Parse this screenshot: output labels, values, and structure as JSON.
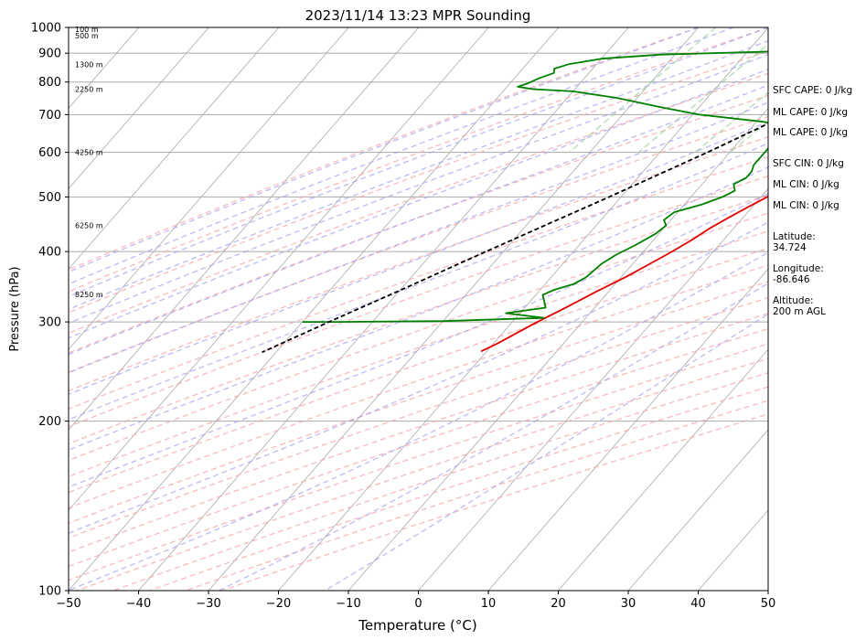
{
  "chart_data": {
    "type": "line",
    "title": "2023/11/14 13:23 MPR Sounding",
    "xlabel": "Temperature (°C)",
    "ylabel": "Pressure (hPa)",
    "xlim": [
      -50,
      50
    ],
    "ylim": [
      1000,
      100
    ],
    "y_scale": "log",
    "x_ticks": [
      -50,
      -40,
      -30,
      -20,
      -10,
      0,
      10,
      20,
      30,
      40,
      50
    ],
    "x_tick_labels": [
      "−50",
      "−40",
      "−30",
      "−20",
      "−10",
      "0",
      "10",
      "20",
      "30",
      "40",
      "50"
    ],
    "y_ticks": [
      1000,
      900,
      800,
      700,
      600,
      500,
      400,
      300,
      200,
      100
    ],
    "skew": true,
    "grid": true,
    "reference_lines": {
      "isotherm_color": "#aaaaaa",
      "dry_adiabat_color": "#f4a6a6",
      "moist_adiabat_color": "#a9a3ee",
      "mixing_ratio_color": "#9fd09f"
    },
    "series": [
      {
        "color": "#e00000",
        "points": [
          [
            1000,
            11.0
          ],
          [
            990,
            12.5
          ],
          [
            975,
            13.3
          ],
          [
            950,
            13.4
          ],
          [
            930,
            13.7
          ],
          [
            910,
            14.3
          ],
          [
            890,
            14.6
          ],
          [
            870,
            15.2
          ],
          [
            850,
            15.8
          ],
          [
            830,
            15.6
          ],
          [
            810,
            15.5
          ],
          [
            790,
            15.3
          ],
          [
            770,
            14.5
          ],
          [
            750,
            13.2
          ],
          [
            720,
            11.5
          ],
          [
            690,
            9.8
          ],
          [
            660,
            8.2
          ],
          [
            630,
            6.5
          ],
          [
            600,
            5.0
          ],
          [
            570,
            3.8
          ],
          [
            540,
            2.6
          ],
          [
            520,
            1.8
          ],
          [
            500,
            0.9
          ],
          [
            480,
            -0.6
          ],
          [
            460,
            -2.0
          ],
          [
            440,
            -3.4
          ],
          [
            420,
            -4.5
          ],
          [
            400,
            -5.9
          ],
          [
            380,
            -7.6
          ],
          [
            360,
            -9.4
          ],
          [
            340,
            -11.7
          ],
          [
            320,
            -13.9
          ],
          [
            300,
            -16.4
          ],
          [
            290,
            -17.6
          ],
          [
            275,
            -19.4
          ],
          [
            266,
            -20.8
          ]
        ]
      },
      {
        "color": "#008000",
        "points": [
          [
            1000,
            -1.0
          ],
          [
            985,
            -2.0
          ],
          [
            965,
            -3.5
          ],
          [
            955,
            -5.5
          ],
          [
            945,
            -6.5
          ],
          [
            930,
            -8.0
          ],
          [
            915,
            -10.0
          ],
          [
            905,
            -18.0
          ],
          [
            895,
            -32.0
          ],
          [
            880,
            -40.0
          ],
          [
            860,
            -44.0
          ],
          [
            845,
            -45.5
          ],
          [
            830,
            -45.0
          ],
          [
            812,
            -46.5
          ],
          [
            795,
            -47.5
          ],
          [
            785,
            -48.5
          ],
          [
            777,
            -46.0
          ],
          [
            770,
            -40.0
          ],
          [
            750,
            -33.0
          ],
          [
            720,
            -25.0
          ],
          [
            700,
            -19.0
          ],
          [
            680,
            -9.0
          ],
          [
            665,
            -4.0
          ],
          [
            650,
            -4.0
          ],
          [
            640,
            -4.5
          ],
          [
            625,
            -5.5
          ],
          [
            610,
            -5.0
          ],
          [
            590,
            -5.0
          ],
          [
            570,
            -5.0
          ],
          [
            555,
            -4.5
          ],
          [
            540,
            -4.5
          ],
          [
            527,
            -5.5
          ],
          [
            513,
            -4.5
          ],
          [
            500,
            -5.5
          ],
          [
            485,
            -7.5
          ],
          [
            470,
            -10.5
          ],
          [
            455,
            -11.0
          ],
          [
            445,
            -10.0
          ],
          [
            430,
            -10.5
          ],
          [
            410,
            -12.0
          ],
          [
            395,
            -13.5
          ],
          [
            380,
            -14.5
          ],
          [
            360,
            -15.0
          ],
          [
            350,
            -16.0
          ],
          [
            342,
            -18.0
          ],
          [
            335,
            -19.0
          ],
          [
            318,
            -17.0
          ],
          [
            311,
            -22.0
          ],
          [
            305,
            -16.0
          ],
          [
            301,
            -30.0
          ],
          [
            300,
            -45.0
          ],
          [
            300,
            -50.0
          ]
        ]
      },
      {
        "color": "#000000",
        "dashed": true,
        "points": [
          [
            1000,
            11.0
          ],
          [
            950,
            9.0
          ],
          [
            900,
            5.3
          ],
          [
            850,
            1.6
          ],
          [
            800,
            -0.6
          ],
          [
            700,
            -6.5
          ],
          [
            600,
            -13.2
          ],
          [
            500,
            -21.7
          ],
          [
            400,
            -32.5
          ],
          [
            350,
            -38.8
          ],
          [
            300,
            -46.2
          ],
          [
            265,
            -52.0
          ]
        ]
      }
    ],
    "height_labels": [
      {
        "p": 993,
        "text": "100 m"
      },
      {
        "p": 967,
        "text": "500 m"
      },
      {
        "p": 860,
        "text": "1300 m"
      },
      {
        "p": 777,
        "text": "2250 m"
      },
      {
        "p": 600,
        "text": "4250 m"
      },
      {
        "p": 445,
        "text": "6250 m"
      },
      {
        "p": 336,
        "text": "8250 m"
      }
    ],
    "side_panel": [
      "SFC CAPE: 0 J/kg",
      "ML CAPE: 0 J/kg",
      "ML CAPE: 0 J/kg",
      "SFC CIN: 0 J/kg",
      "ML CIN: 0 J/kg",
      "ML CIN: 0 J/kg",
      "Latitude:\n34.724",
      "Longitude:\n-86.646",
      "Altitude:\n200 m AGL"
    ]
  }
}
